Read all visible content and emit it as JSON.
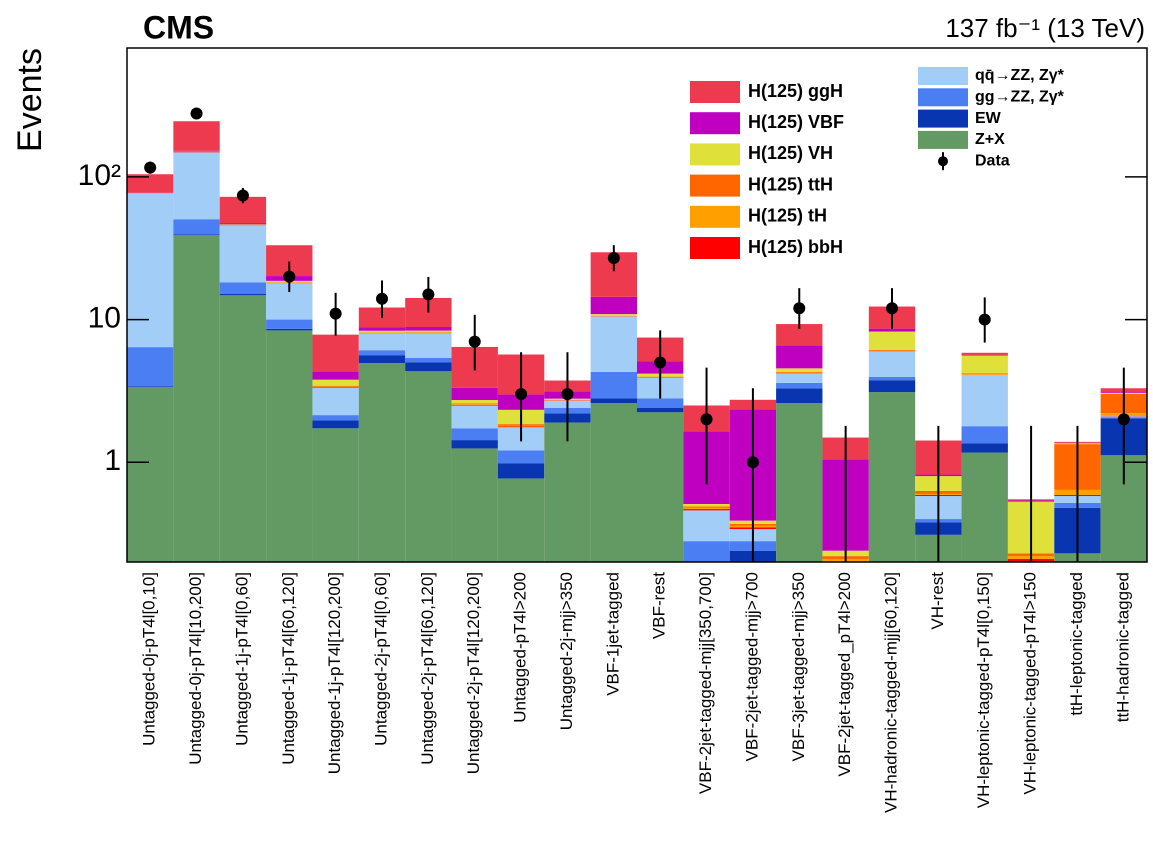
{
  "chart_data": {
    "type": "stacked_bar",
    "title": "CMS",
    "subtitle": "137 fb⁻¹ (13 TeV)",
    "y_label": "Events",
    "log_scale": true,
    "ylim": [
      0.2,
      800
    ],
    "yticks": [
      1,
      10,
      {
        "value": 100,
        "label": "10²"
      }
    ],
    "categories": [
      "Untagged-0j-pT4l[0,10]",
      "Untagged-0j-pT4l[10,200]",
      "Untagged-1j-pT4l[0,60]",
      "Untagged-1j-pT4l[60,120]",
      "Untagged-1j-pT4l[120,200]",
      "Untagged-2j-pT4l[0,60]",
      "Untagged-2j-pT4l[60,120]",
      "Untagged-2j-pT4l[120,200]",
      "Untagged-pT4l>200",
      "Untagged-2j-mjj>350",
      "VBF-1jet-tagged",
      "VBF-rest",
      "VBF-2jet-tagged-mjj[350,700]",
      "VBF-2jet-tagged-mjj>700",
      "VBF-3jet-tagged-mjj>350",
      "VBF-2jet-tagged_pT4l>200",
      "VH-hadronic-tagged-mjj[60,120]",
      "VH-rest",
      "VH-leptonic-tagged-pT4l[0,150]",
      "VH-leptonic-tagged-pT4l>150",
      "ttH-leptonic-tagged",
      "ttH-hadronic-tagged"
    ],
    "series": [
      {
        "name": "Z+X",
        "color": "#639a63",
        "values": [
          3.36,
          39,
          14.8,
          8.4,
          1.73,
          4.95,
          4.34,
          1.25,
          0.77,
          1.9,
          2.6,
          2.24,
          0.15,
          0.1,
          2.6,
          0.1,
          3.1,
          0.31,
          1.17,
          0.1,
          0.23,
          1.12
        ]
      },
      {
        "name": "EW",
        "color": "#0a35b0",
        "values": [
          0.05,
          0.5,
          0.3,
          0.2,
          0.24,
          0.65,
          0.66,
          0.18,
          0.21,
          0.3,
          0.2,
          0.16,
          0.05,
          0.14,
          0.7,
          0.05,
          0.66,
          0.07,
          0.19,
          0.05,
          0.25,
          0.91
        ]
      },
      {
        "name": "gg→ZZ, Zγ*",
        "color": "#4a7ef2",
        "values": [
          3,
          11,
          3.1,
          1.4,
          0.17,
          0.5,
          0.4,
          0.3,
          0.23,
          0.2,
          1.5,
          0.4,
          0.08,
          0.04,
          0.3,
          0.02,
          0.2,
          0.02,
          0.43,
          0.03,
          0.04,
          0.04
        ]
      },
      {
        "name": "qq̄→ZZ, Zγ*",
        "color": "#a2cdf6",
        "values": [
          70,
          98,
          27.5,
          8,
          1.2,
          1.9,
          2.6,
          0.77,
          0.55,
          0.3,
          6.2,
          1.1,
          0.18,
          0.06,
          0.6,
          0.02,
          2,
          0.18,
          2.3,
          0.02,
          0.06,
          0.03
        ]
      },
      {
        "name": "H(125) bbH",
        "color": "#ff0000",
        "values": [
          0.3,
          0.8,
          0.2,
          0.1,
          0.03,
          0.03,
          0.03,
          0.02,
          0.02,
          0.01,
          0.05,
          0.02,
          0.01,
          0.01,
          0.02,
          0.01,
          0.03,
          0.01,
          0.01,
          0.01,
          0.01,
          0.01
        ]
      },
      {
        "name": "H(125) tH",
        "color": "#ffa000",
        "values": [
          0.01,
          0.02,
          0.02,
          0.03,
          0.02,
          0.02,
          0.03,
          0.03,
          0.03,
          0.01,
          0.02,
          0.02,
          0.01,
          0.01,
          0.03,
          0.01,
          0.05,
          0.01,
          0.05,
          0.01,
          0.05,
          0.1
        ]
      },
      {
        "name": "H(125) ttH",
        "color": "#ff6600",
        "values": [
          0.01,
          0.02,
          0.02,
          0.05,
          0.05,
          0.05,
          0.06,
          0.03,
          0.04,
          0.02,
          0.05,
          0.04,
          0.01,
          0.01,
          0.05,
          0.01,
          0.1,
          0.03,
          0.05,
          0.01,
          0.7,
          0.8
        ]
      },
      {
        "name": "H(125) VH",
        "color": "#e0e03a",
        "values": [
          0.3,
          1,
          0.5,
          0.5,
          0.35,
          0.25,
          0.25,
          0.15,
          0.48,
          0.05,
          0.3,
          0.2,
          0.02,
          0.02,
          0.25,
          0.02,
          2.1,
          0.17,
          1.4,
          0.3,
          0.02,
          0.05
        ]
      },
      {
        "name": "H(125) VBF",
        "color": "#c000c0",
        "values": [
          0.3,
          2,
          1,
          1.5,
          0.55,
          0.5,
          0.5,
          0.6,
          0.66,
          0.35,
          3.5,
          0.9,
          1.14,
          1.95,
          2.05,
          0.81,
          0.4,
          0.02,
          0.05,
          0.01,
          0.01,
          0.04
        ]
      },
      {
        "name": "H(125) ggH",
        "color": "#ee3a4f",
        "values": [
          27,
          93,
          25,
          13,
          3.5,
          3.3,
          5.3,
          3.1,
          2.7,
          0.6,
          15.2,
          2.4,
          0.85,
          0.4,
          2.7,
          0.44,
          3.7,
          0.6,
          0.2,
          0.01,
          0.02,
          0.2
        ]
      }
    ],
    "data": {
      "name": "Data",
      "color": "#000000",
      "values": [
        116,
        278,
        74,
        20,
        11,
        14,
        15,
        7,
        3,
        3,
        27,
        5,
        2,
        1,
        12,
        0,
        12,
        0,
        10,
        0,
        0,
        2
      ],
      "errors_low": [
        10.8,
        16.7,
        8.6,
        4.4,
        3.3,
        3.7,
        3.8,
        2.6,
        1.6,
        1.6,
        5.2,
        2.2,
        1.3,
        0.8,
        3.4,
        0,
        3.4,
        0,
        3.1,
        0,
        0,
        1.3
      ],
      "errors_high": [
        11.8,
        17.7,
        9.6,
        5.5,
        4.4,
        4.8,
        4.9,
        3.8,
        2.9,
        2.9,
        6.2,
        3.4,
        2.6,
        2.3,
        4.6,
        1.8,
        4.6,
        1.8,
        4.3,
        1.8,
        1.8,
        2.6
      ]
    }
  }
}
